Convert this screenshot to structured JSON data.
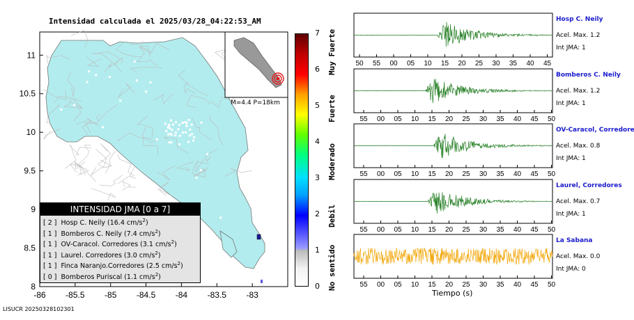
{
  "map": {
    "title": "Intensidad calculada el 2025/03/28_04:22:53_AM",
    "footer_id": "LISUCR 20250328102301",
    "x_ticks": [
      "-86",
      "-85.5",
      "-85",
      "-84.5",
      "-84",
      "-83.5",
      "-83"
    ],
    "y_ticks": [
      "11",
      "10.5",
      "10",
      "9.5",
      "9",
      "8.5",
      "8"
    ],
    "inset_caption": "M=4.4 P=18km",
    "land_color": "#b2ecee",
    "road_color": "#bbbbbb",
    "station_color": "#1a1a9a",
    "epicenter_color": "#e31a1c"
  },
  "colorbar": {
    "ticks": [
      "0",
      "1",
      "2",
      "3",
      "4",
      "5",
      "6",
      "7"
    ],
    "labels": [
      "No sentido",
      "Debil",
      "Moderado",
      "Fuerte",
      "Muy Fuerte"
    ]
  },
  "legend": {
    "title": "INTENSIDAD JMA [0 a 7]",
    "items": [
      {
        "level": "[ 2 ]",
        "text": "Hosp C. Neily (16.4 cm/s",
        "sup": "2",
        "end": ")"
      },
      {
        "level": "[ 1 ]",
        "text": "Bomberos C. Neily (7.4 cm/s",
        "sup": "2",
        "end": ")"
      },
      {
        "level": "[ 1 ]",
        "text": "OV-Caracol. Corredores (3.1 cm/s",
        "sup": "2",
        "end": ")"
      },
      {
        "level": "[ 1 ]",
        "text": "Laurel. Corredores (3.0 cm/s",
        "sup": "2",
        "end": ")"
      },
      {
        "level": "[ 1 ]",
        "text": "Finca Naranjo.Corredores (2.5 cm/s",
        "sup": "2",
        "end": ")"
      },
      {
        "level": "[ 0 ]",
        "text": "Bomberos Puriscal (1.1 cm/s",
        "sup": "2",
        "end": ")"
      }
    ]
  },
  "stations": [
    {
      "name": "Hosp C. Neily",
      "accel": "Acel. Max. 1.2",
      "jma": "Int JMA: 1",
      "ticks": [
        "50",
        "55",
        "00",
        "05",
        "10",
        "15",
        "20",
        "25",
        "30",
        "35",
        "40",
        "45"
      ],
      "color": "#1e7b1e"
    },
    {
      "name": "Bomberos C. Neily",
      "accel": "Acel. Max. 1.2",
      "jma": "Int JMA: 1",
      "ticks": [
        "55",
        "00",
        "05",
        "10",
        "15",
        "20",
        "25",
        "30",
        "35",
        "40",
        "45",
        "50"
      ],
      "color": "#1e7b1e"
    },
    {
      "name": "OV-Caracol, Corredore",
      "accel": "Acel. Max. 0.8",
      "jma": "Int JMA: 1",
      "ticks": [
        "55",
        "00",
        "05",
        "10",
        "15",
        "20",
        "25",
        "30",
        "35",
        "40",
        "45",
        "50"
      ],
      "color": "#1e7b1e"
    },
    {
      "name": "Laurel, Corredores",
      "accel": "Acel. Max. 0.7",
      "jma": "Int JMA: 1",
      "ticks": [
        "55",
        "00",
        "05",
        "10",
        "15",
        "20",
        "25",
        "30",
        "35",
        "40",
        "45",
        "50"
      ],
      "color": "#1e7b1e"
    },
    {
      "name": "La Sabana",
      "accel": "Acel. Max. 0.0",
      "jma": "Int JMA: 0",
      "ticks": [
        "55",
        "00",
        "05",
        "10",
        "15",
        "20",
        "25",
        "30",
        "35",
        "40",
        "45",
        "50"
      ],
      "color": "#f2a400"
    }
  ],
  "time_axis_label": "Tiempo (s)",
  "chart_data": {
    "type": "map_with_waveforms",
    "title": "Intensidad calculada el 2025/03/28_04:22:53_AM",
    "map_xlim": [
      -86,
      -82.5
    ],
    "map_ylim": [
      8,
      11.3
    ],
    "magnitude_depth": "M=4.4 P=18km",
    "station_intensities": [
      {
        "station": "Hosp C. Neily",
        "jma": 2,
        "accel_cm_s2": 16.4
      },
      {
        "station": "Bomberos C. Neily",
        "jma": 1,
        "accel_cm_s2": 7.4
      },
      {
        "station": "OV-Caracol. Corredores",
        "jma": 1,
        "accel_cm_s2": 3.1
      },
      {
        "station": "Laurel. Corredores",
        "jma": 1,
        "accel_cm_s2": 3.0
      },
      {
        "station": "Finca Naranjo.Corredores",
        "jma": 1,
        "accel_cm_s2": 2.5
      },
      {
        "station": "Bomberos Puriscal",
        "jma": 0,
        "accel_cm_s2": 1.1
      }
    ],
    "waveform_peaks": [
      {
        "station": "Hosp C. Neily",
        "acel_max": 1.2,
        "int_jma": 1
      },
      {
        "station": "Bomberos C. Neily",
        "acel_max": 1.2,
        "int_jma": 1
      },
      {
        "station": "OV-Caracol, Corredore",
        "acel_max": 0.8,
        "int_jma": 1
      },
      {
        "station": "Laurel, Corredores",
        "acel_max": 0.7,
        "int_jma": 1
      },
      {
        "station": "La Sabana",
        "acel_max": 0.0,
        "int_jma": 0
      }
    ],
    "colorbar_range": [
      0,
      7
    ]
  }
}
